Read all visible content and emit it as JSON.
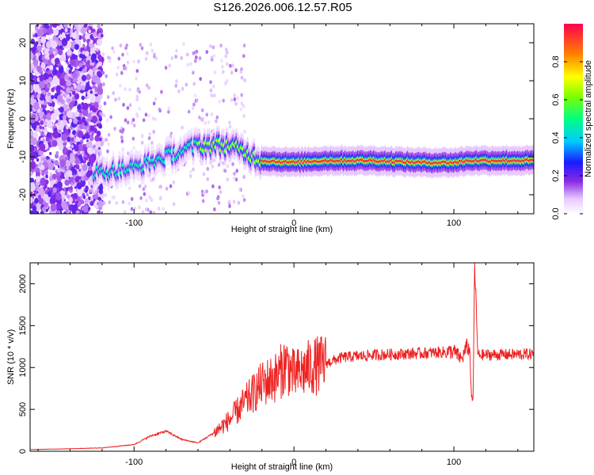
{
  "title": "S126.2026.006.12.57.R05",
  "chart_data": [
    {
      "type": "heatmap",
      "xlabel": "Height of straight line (km)",
      "ylabel": "Frequency (Hz)",
      "xlim": [
        -165,
        150
      ],
      "ylim": [
        -25,
        25
      ],
      "xticks": [
        -100,
        0,
        100
      ],
      "yticks": [
        -20,
        -10,
        0,
        10,
        20
      ],
      "colorbar": {
        "label": "Normalized spectral amplitude",
        "range": [
          0,
          1
        ],
        "ticks": [
          "0.0",
          "0.2",
          "0.4",
          "0.6",
          "0.8"
        ],
        "tick_values": [
          0,
          0.2,
          0.4,
          0.6,
          0.8
        ]
      },
      "ridge": {
        "heights": [
          -120,
          -100,
          -80,
          -60,
          -40,
          -30,
          -20,
          0,
          20,
          50,
          80,
          100,
          110,
          150
        ],
        "frequency": [
          -14,
          -13,
          -10,
          -7,
          -7,
          -9,
          -11,
          -11.5,
          -11,
          -11,
          -11.5,
          -11.5,
          -11,
          -11
        ]
      },
      "peak_amplitude": 0.95
    },
    {
      "type": "line",
      "xlabel": "Height of straight line (km)",
      "ylabel": "SNR (10 * v/v)",
      "xlim": [
        -165,
        150
      ],
      "ylim": [
        0,
        2250
      ],
      "xticks": [
        -100,
        0,
        100
      ],
      "yticks": [
        0,
        500,
        1000,
        1500,
        2000
      ],
      "series": [
        {
          "color": "#ee2020",
          "x": [
            -165,
            -140,
            -120,
            -100,
            -90,
            -80,
            -70,
            -60,
            -50,
            -40,
            -30,
            -20,
            -10,
            -5,
            0,
            10,
            20,
            30,
            50,
            80,
            100,
            105,
            108,
            110,
            111,
            112,
            113,
            115,
            120,
            150
          ],
          "y": [
            20,
            30,
            40,
            80,
            180,
            240,
            140,
            100,
            220,
            380,
            600,
            800,
            900,
            1050,
            900,
            1000,
            1050,
            1120,
            1150,
            1170,
            1190,
            1100,
            1250,
            1200,
            650,
            600,
            2250,
            1150,
            1150,
            1160
          ]
        }
      ]
    }
  ]
}
